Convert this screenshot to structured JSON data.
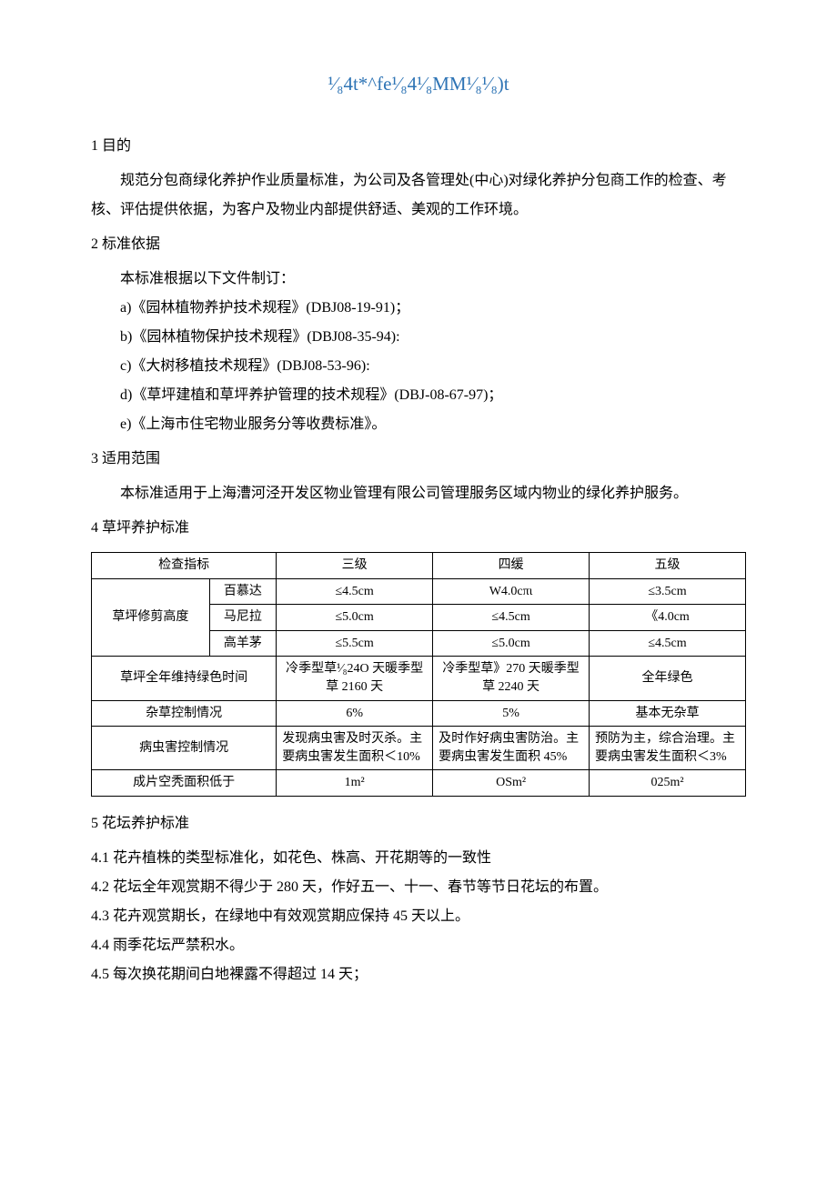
{
  "title": "¹⁄₈4t*^fe¹⁄₈4¹⁄₈MM¹⁄₈¹⁄₈)t",
  "s1": {
    "heading": "1 目的",
    "para": "规范分包商绿化养护作业质量标准，为公司及各管理处(中心)对绿化养护分包商工作的检查、考核、评估提供依据，为客户及物业内部提供舒适、美观的工作环境。"
  },
  "s2": {
    "heading": "2 标准依据",
    "intro": "本标准根据以下文件制订：",
    "items": [
      "a)《园林植物养护技术规程》(DBJ08-19-91)；",
      "b)《园林植物保护技术规程》(DBJ08-35-94):",
      "c)《大树移植技术规程》(DBJ08-53-96):",
      "d)《草坪建植和草坪养护管理的技术规程》(DBJ-08-67-97)；",
      "e)《上海市住宅物业服务分等收费标准》。"
    ]
  },
  "s3": {
    "heading": "3 适用范围",
    "para": "本标准适用于上海漕河泾开发区物业管理有限公司管理服务区域内物业的绿化养护服务。"
  },
  "s4": {
    "heading": "4 草坪养护标准",
    "table": {
      "header": {
        "indicator": "检查指标",
        "l3": "三级",
        "l4": "四缓",
        "l5": "五级"
      },
      "trim": {
        "label": "草坪修剪高度",
        "rows": [
          {
            "name": "百慕达",
            "l3": "≤4.5cm",
            "l4": "W4.0cπι",
            "l5": "≤3.5cm"
          },
          {
            "name": "马尼拉",
            "l3": "≤5.0cm",
            "l4": "≤4.5cm",
            "l5": "《4.0cm"
          },
          {
            "name": "高羊茅",
            "l3": "≤5.5cm",
            "l4": "≤5.0cm",
            "l5": "≤4.5cm"
          }
        ]
      },
      "green": {
        "label": "草坪全年维持绿色时间",
        "l3": "冷季型草¹⁄₈24O 天暖季型草 2160 天",
        "l4": "冷季型草》270 天暖季型草 2240 天",
        "l5": "全年绿色"
      },
      "weeds": {
        "label": "杂草控制情况",
        "l3": "6%",
        "l4": "5%",
        "l5": "基本无杂草"
      },
      "pests": {
        "label": "病虫害控制情况",
        "l3": "发现病虫害及时灭杀。主要病虫害发生面积＜10%",
        "l4": "及时作好病虫害防治。主要病虫害发生面积 45%",
        "l5": "预防为主，综合治理。主要病虫害发生面积＜3%"
      },
      "bare": {
        "label": "成片空秃面积低于",
        "l3": "1m²",
        "l4": "OSm²",
        "l5": "025m²"
      }
    }
  },
  "s5": {
    "heading": "5 花坛养护标准",
    "items": [
      "4.1 花卉植株的类型标准化，如花色、株高、开花期等的一致性",
      "4.2 花坛全年观赏期不得少于 280 天，作好五一、十一、春节等节日花坛的布置。",
      "4.3 花卉观赏期长，在绿地中有效观赏期应保持 45 天以上。",
      "4.4 雨季花坛严禁积水。",
      "4.5 每次换花期间白地裸露不得超过 14 天；"
    ]
  },
  "colors": {
    "title": "#2e74b5",
    "text": "#000000",
    "border": "#000000",
    "bg": "#ffffff"
  }
}
